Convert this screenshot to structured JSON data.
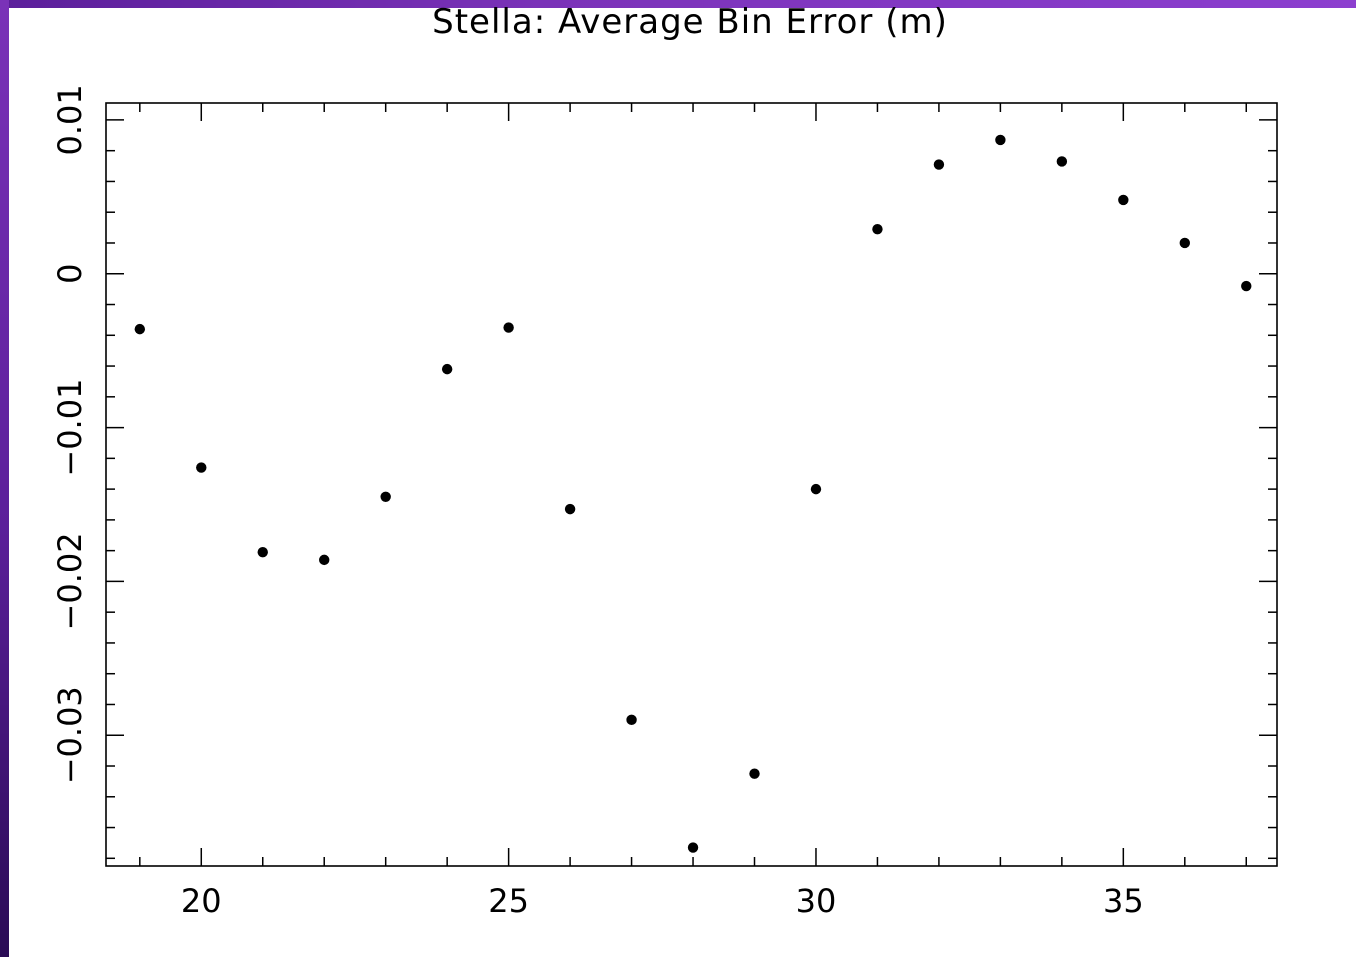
{
  "chart_data": {
    "type": "scatter",
    "title": "Stella: Average Bin Error (m)",
    "xlabel": "",
    "ylabel": "",
    "xlim": [
      18.45,
      37.5
    ],
    "ylim": [
      -0.0385,
      0.0111
    ],
    "x_ticks": [
      20,
      25,
      30,
      35
    ],
    "x_tick_labels": [
      "20",
      "25",
      "30",
      "35"
    ],
    "y_ticks": [
      0.01,
      0,
      -0.01,
      -0.02,
      -0.03
    ],
    "y_tick_labels": [
      "0.01",
      "0",
      "−0.01",
      "−0.02",
      "−0.03"
    ],
    "grid": false,
    "legend": "none",
    "marker_color": "#000000",
    "frame_color": "#5b1f9a",
    "series": [
      {
        "x": [
          19,
          20,
          21,
          22,
          23,
          24,
          25,
          26,
          27,
          28,
          29,
          30,
          31,
          32,
          33,
          34,
          35,
          36,
          37
        ],
        "y": [
          -0.0036,
          -0.0126,
          -0.0181,
          -0.0186,
          -0.0145,
          -0.0062,
          -0.0035,
          -0.0153,
          -0.029,
          -0.0373,
          -0.0325,
          -0.014,
          0.0029,
          0.0071,
          0.0087,
          0.0073,
          0.0048,
          0.002,
          -0.0008
        ]
      }
    ]
  }
}
